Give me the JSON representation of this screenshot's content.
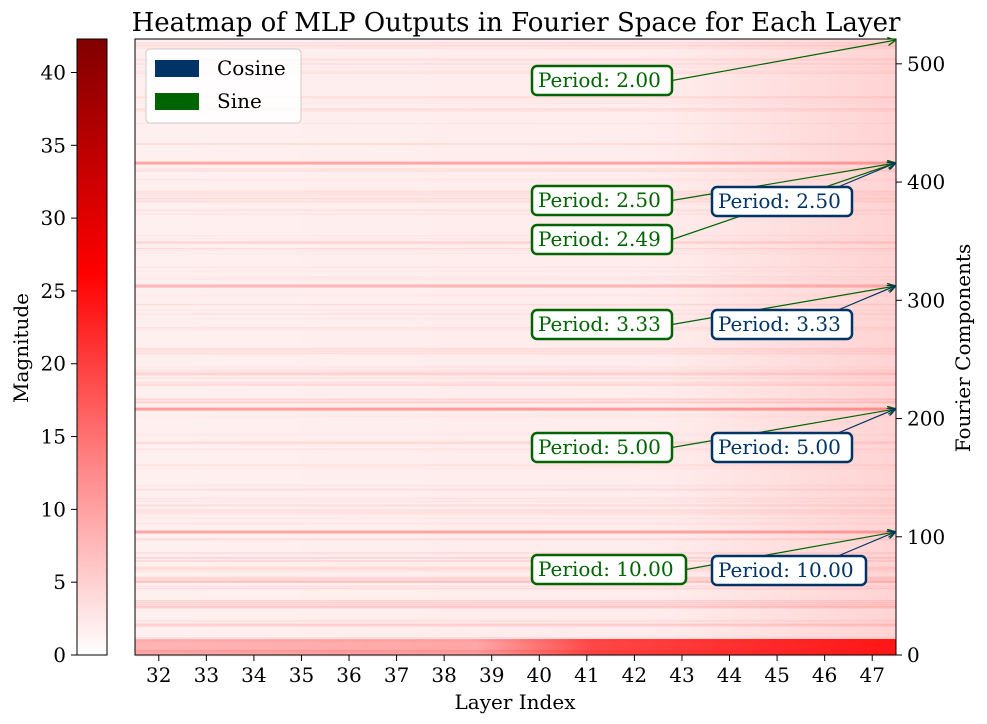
{
  "chart_data": {
    "type": "heatmap",
    "title": "Heatmap of MLP Outputs in Fourier Space for Each Layer",
    "xlabel": "Layer Index",
    "ylabel": "Fourier Components",
    "colorbar_label": "Magnitude",
    "x": [
      32,
      33,
      34,
      35,
      36,
      37,
      38,
      39,
      40,
      41,
      42,
      43,
      44,
      45,
      46,
      47
    ],
    "xlim": [
      31.5,
      47.5
    ],
    "ylim": [
      0,
      521
    ],
    "y_ticks": [
      0,
      100,
      200,
      300,
      400,
      500
    ],
    "colorbar_range": [
      0,
      42.3
    ],
    "colorbar_ticks": [
      0,
      5,
      10,
      15,
      20,
      25,
      30,
      35,
      40
    ],
    "colormap": [
      "#ffffff",
      "#ff8080",
      "#ff0000",
      "#800000"
    ],
    "legend": {
      "position": "top-left",
      "entries": [
        {
          "name": "Cosine",
          "color": "#003366"
        },
        {
          "name": "Sine",
          "color": "#006400"
        }
      ]
    },
    "bright_bands": [
      {
        "component": 104,
        "relative_intensity": 0.35
      },
      {
        "component": 208,
        "relative_intensity": 0.4
      },
      {
        "component": 312,
        "relative_intensity": 0.25
      },
      {
        "component": 416,
        "relative_intensity": 0.35
      }
    ],
    "annotations": [
      {
        "text": "Period: 2.00",
        "series": "Sine",
        "target_component": 520
      },
      {
        "text": "Period: 2.50",
        "series": "Sine",
        "target_component": 416
      },
      {
        "text": "Period: 2.49",
        "series": "Sine",
        "target_component": 416
      },
      {
        "text": "Period: 2.50",
        "series": "Cosine",
        "target_component": 416
      },
      {
        "text": "Period: 3.33",
        "series": "Sine",
        "target_component": 312
      },
      {
        "text": "Period: 3.33",
        "series": "Cosine",
        "target_component": 312
      },
      {
        "text": "Period: 5.00",
        "series": "Sine",
        "target_component": 208
      },
      {
        "text": "Period: 5.00",
        "series": "Cosine",
        "target_component": 208
      },
      {
        "text": "Period: 10.00",
        "series": "Sine",
        "target_component": 104
      },
      {
        "text": "Period: 10.00",
        "series": "Cosine",
        "target_component": 104
      }
    ],
    "grid": false
  }
}
